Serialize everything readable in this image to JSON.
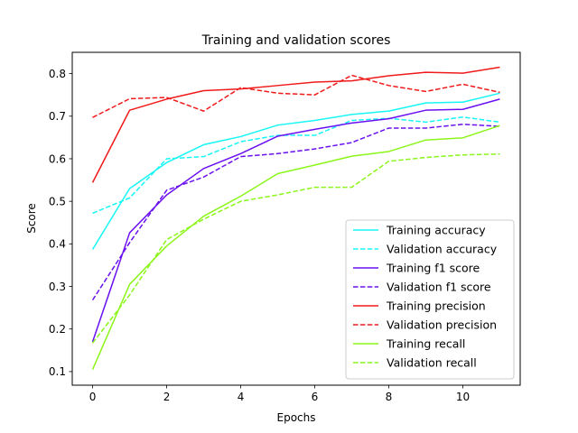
{
  "chart_data": {
    "type": "line",
    "title": "Training and validation scores",
    "xlabel": "Epochs",
    "ylabel": "Score",
    "xlim": [
      -0.55,
      11.55
    ],
    "ylim": [
      0.068,
      0.85
    ],
    "x_ticks": [
      0,
      2,
      4,
      6,
      8,
      10
    ],
    "y_ticks": [
      0.1,
      0.2,
      0.3,
      0.4,
      0.5,
      0.6,
      0.7,
      0.8
    ],
    "grid": false,
    "legend_position": "bottom-right",
    "x": [
      0,
      1,
      2,
      3,
      4,
      5,
      6,
      7,
      8,
      9,
      10,
      11
    ],
    "series": [
      {
        "name": "Training accuracy",
        "color": "#18f5f5",
        "dash": "solid",
        "values": [
          0.387,
          0.53,
          0.591,
          0.633,
          0.652,
          0.679,
          0.69,
          0.704,
          0.712,
          0.731,
          0.733,
          0.754
        ]
      },
      {
        "name": "Validation accuracy",
        "color": "#18f5f5",
        "dash": "dashed",
        "values": [
          0.472,
          0.508,
          0.6,
          0.605,
          0.64,
          0.655,
          0.655,
          0.69,
          0.695,
          0.686,
          0.698,
          0.686
        ]
      },
      {
        "name": "Training f1 score",
        "color": "#6a10f0",
        "dash": "solid",
        "values": [
          0.17,
          0.426,
          0.515,
          0.577,
          0.612,
          0.653,
          0.669,
          0.684,
          0.694,
          0.714,
          0.716,
          0.74
        ]
      },
      {
        "name": "Validation f1 score",
        "color": "#6a10f0",
        "dash": "dashed",
        "values": [
          0.268,
          0.403,
          0.526,
          0.557,
          0.605,
          0.612,
          0.623,
          0.638,
          0.672,
          0.672,
          0.681,
          0.676
        ]
      },
      {
        "name": "Training precision",
        "color": "#f01a1a",
        "dash": "solid",
        "values": [
          0.544,
          0.714,
          0.74,
          0.76,
          0.764,
          0.772,
          0.78,
          0.783,
          0.795,
          0.803,
          0.801,
          0.815
        ]
      },
      {
        "name": "Validation precision",
        "color": "#f01a1a",
        "dash": "dashed",
        "values": [
          0.697,
          0.741,
          0.744,
          0.712,
          0.767,
          0.754,
          0.75,
          0.796,
          0.772,
          0.758,
          0.775,
          0.756
        ]
      },
      {
        "name": "Training recall",
        "color": "#8cf519",
        "dash": "solid",
        "values": [
          0.105,
          0.305,
          0.395,
          0.465,
          0.512,
          0.565,
          0.585,
          0.606,
          0.617,
          0.644,
          0.649,
          0.678
        ]
      },
      {
        "name": "Validation recall",
        "color": "#8cf519",
        "dash": "dashed",
        "values": [
          0.167,
          0.28,
          0.41,
          0.458,
          0.5,
          0.515,
          0.533,
          0.533,
          0.594,
          0.603,
          0.609,
          0.611
        ]
      }
    ]
  }
}
